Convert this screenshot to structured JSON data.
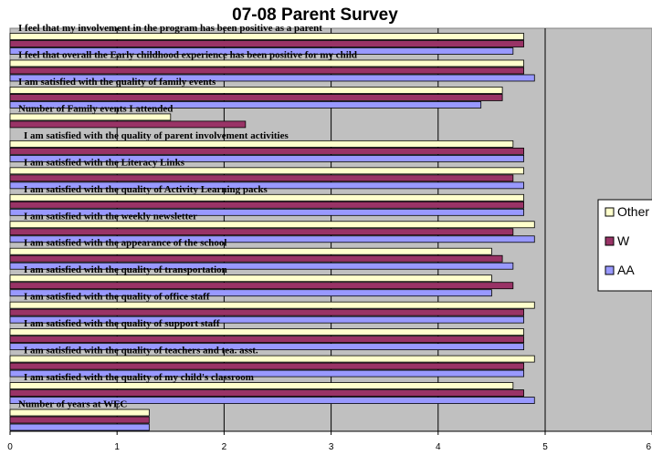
{
  "chart_data": {
    "type": "bar",
    "orientation": "horizontal",
    "title": "07-08 Parent Survey",
    "xlim": [
      0,
      6
    ],
    "x_ticks": [
      "0",
      "1",
      "2",
      "3",
      "4",
      "5",
      "6"
    ],
    "grid": true,
    "legend_position": "right",
    "categories": [
      "I feel that my involvement in the program has been positive as a parent",
      "I feel that overall the Early childhood experience has been positive for my child",
      "I am satisfied with the quality of family events",
      "Number of Family events I attended",
      "I am satisfied with the quality of parent involvement activities",
      "I am satisfied with the Literacy Links",
      "I am satisfied with the quality of Activity Learning packs",
      "I am satisfied with the weekly newsletter",
      "I am satisfied with the appearance of the school",
      "I am satisfied with the quality of transportation",
      "I am satisfied with the quality of office staff",
      "I am satisfied with the quality of support staff",
      "I am satisfied with the quality of teachers and tea. asst.",
      "I am satisfied with the quality of my child's classroom",
      "Number of years at WEC"
    ],
    "series": [
      {
        "name": "Other",
        "color": "#FFFFCC",
        "values": [
          4.8,
          4.8,
          4.6,
          1.5,
          4.7,
          4.8,
          4.8,
          4.9,
          4.5,
          4.5,
          4.9,
          4.8,
          4.9,
          4.7,
          1.3
        ]
      },
      {
        "name": "W",
        "color": "#993366",
        "values": [
          4.8,
          4.8,
          4.6,
          2.2,
          4.8,
          4.7,
          4.8,
          4.7,
          4.6,
          4.7,
          4.8,
          4.8,
          4.8,
          4.8,
          1.3
        ]
      },
      {
        "name": "AA",
        "color": "#9999FF",
        "values": [
          4.7,
          4.9,
          4.4,
          0,
          4.8,
          4.8,
          4.8,
          4.9,
          4.7,
          4.5,
          4.8,
          4.8,
          4.8,
          4.9,
          1.3
        ]
      }
    ]
  }
}
